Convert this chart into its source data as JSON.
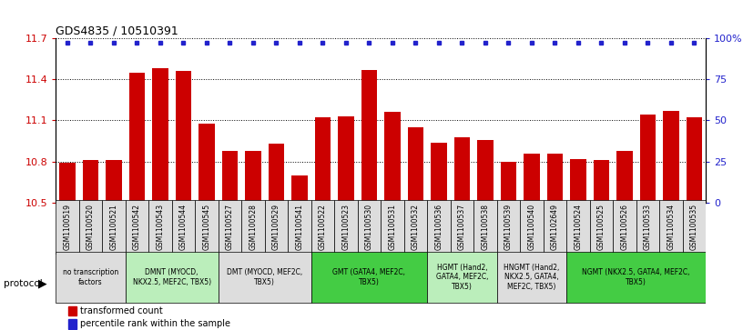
{
  "title": "GDS4835 / 10510391",
  "samples": [
    "GSM1100519",
    "GSM1100520",
    "GSM1100521",
    "GSM1100542",
    "GSM1100543",
    "GSM1100544",
    "GSM1100545",
    "GSM1100527",
    "GSM1100528",
    "GSM1100529",
    "GSM1100541",
    "GSM1100522",
    "GSM1100523",
    "GSM1100530",
    "GSM1100531",
    "GSM1100532",
    "GSM1100536",
    "GSM1100537",
    "GSM1100538",
    "GSM1100539",
    "GSM1100540",
    "GSM1102649",
    "GSM1100524",
    "GSM1100525",
    "GSM1100526",
    "GSM1100533",
    "GSM1100534",
    "GSM1100535"
  ],
  "values": [
    10.79,
    10.81,
    10.81,
    11.45,
    11.48,
    11.46,
    11.08,
    10.88,
    10.88,
    10.93,
    10.7,
    11.12,
    11.13,
    11.47,
    11.16,
    11.05,
    10.94,
    10.98,
    10.96,
    10.8,
    10.86,
    10.86,
    10.82,
    10.81,
    10.88,
    11.14,
    11.17,
    11.12
  ],
  "percentiles": [
    97,
    97,
    97,
    97,
    97,
    97,
    97,
    97,
    97,
    97,
    97,
    97,
    97,
    97,
    97,
    97,
    97,
    97,
    97,
    97,
    97,
    97,
    97,
    97,
    97,
    97,
    97,
    97
  ],
  "bar_color": "#cc0000",
  "dot_color": "#2222cc",
  "ylim_left": [
    10.5,
    11.7
  ],
  "ylim_right": [
    0,
    100
  ],
  "yticks_left": [
    10.5,
    10.8,
    11.1,
    11.4,
    11.7
  ],
  "yticks_right": [
    0,
    25,
    50,
    75,
    100
  ],
  "ytick_labels_right": [
    "0",
    "25",
    "50",
    "75",
    "100%"
  ],
  "protocol_groups": [
    {
      "label": "no transcription\nfactors",
      "start": 0,
      "end": 3,
      "color": "#dddddd"
    },
    {
      "label": "DMNT (MYOCD,\nNKX2.5, MEF2C, TBX5)",
      "start": 3,
      "end": 7,
      "color": "#bbeebb"
    },
    {
      "label": "DMT (MYOCD, MEF2C,\nTBX5)",
      "start": 7,
      "end": 11,
      "color": "#dddddd"
    },
    {
      "label": "GMT (GATA4, MEF2C,\nTBX5)",
      "start": 11,
      "end": 16,
      "color": "#44cc44"
    },
    {
      "label": "HGMT (Hand2,\nGATA4, MEF2C,\nTBX5)",
      "start": 16,
      "end": 19,
      "color": "#bbeebb"
    },
    {
      "label": "HNGMT (Hand2,\nNKX2.5, GATA4,\nMEF2C, TBX5)",
      "start": 19,
      "end": 22,
      "color": "#dddddd"
    },
    {
      "label": "NGMT (NKX2.5, GATA4, MEF2C,\nTBX5)",
      "start": 22,
      "end": 28,
      "color": "#44cc44"
    }
  ],
  "bg_color": "#ffffff"
}
